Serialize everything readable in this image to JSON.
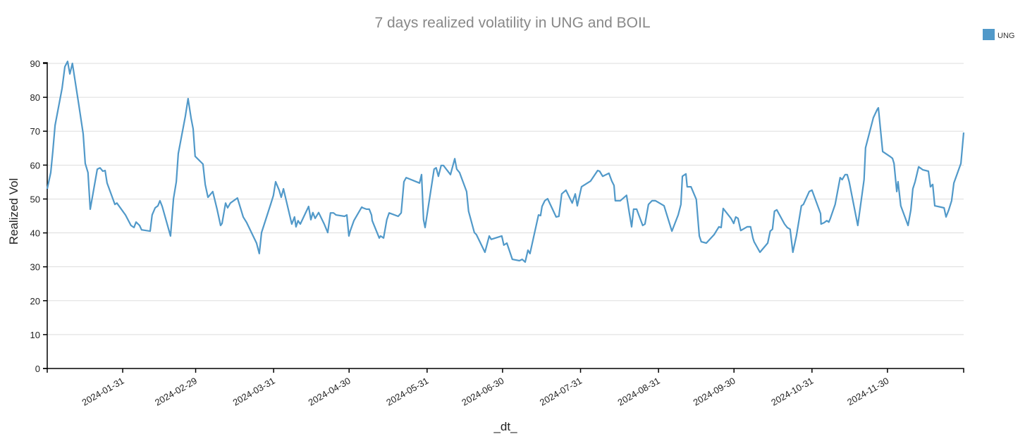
{
  "chart_data": {
    "type": "line",
    "title": "7 days realized volatility in UNG and BOIL",
    "xlabel": "_dt_",
    "ylabel": "Realized Vol",
    "x_origin": "2024-01-01",
    "x_unit": "days since origin",
    "xlim_days": [
      0,
      364.3
    ],
    "ylim": [
      0,
      90
    ],
    "yticks": [
      0,
      10,
      20,
      30,
      40,
      50,
      60,
      70,
      80,
      90
    ],
    "xticks": [
      {
        "day": 30,
        "label": "2024-01-31"
      },
      {
        "day": 59,
        "label": "2024-02-29"
      },
      {
        "day": 90,
        "label": "2024-03-31"
      },
      {
        "day": 120,
        "label": "2024-04-30"
      },
      {
        "day": 151,
        "label": "2024-05-31"
      },
      {
        "day": 181,
        "label": "2024-06-30"
      },
      {
        "day": 212,
        "label": "2024-07-31"
      },
      {
        "day": 243,
        "label": "2024-08-31"
      },
      {
        "day": 273,
        "label": "2024-09-30"
      },
      {
        "day": 304,
        "label": "2024-10-31"
      },
      {
        "day": 334,
        "label": "2024-11-30"
      }
    ],
    "grid": "horizontal",
    "legend_position": "top-right",
    "series": [
      {
        "name": "UNG",
        "color": "#5199c9",
        "points": [
          [
            0,
            53
          ],
          [
            1.4,
            57.8
          ],
          [
            2.2,
            64
          ],
          [
            3.1,
            71.7
          ],
          [
            5.9,
            82.7
          ],
          [
            7,
            89
          ],
          [
            8.1,
            90.6
          ],
          [
            9,
            86.9
          ],
          [
            10,
            90
          ],
          [
            12.6,
            77.5
          ],
          [
            14.3,
            69.2
          ],
          [
            15.1,
            60.5
          ],
          [
            16.2,
            57.8
          ],
          [
            17.1,
            47
          ],
          [
            19.9,
            58.8
          ],
          [
            21,
            59.2
          ],
          [
            22.1,
            58.2
          ],
          [
            23,
            58.4
          ],
          [
            23.8,
            54.7
          ],
          [
            26.9,
            48.4
          ],
          [
            27.7,
            48.8
          ],
          [
            31.1,
            45.3
          ],
          [
            33.3,
            42.2
          ],
          [
            34.5,
            41.6
          ],
          [
            35.3,
            43.2
          ],
          [
            36.7,
            42.2
          ],
          [
            37.5,
            40.9
          ],
          [
            40.9,
            40.5
          ],
          [
            41.7,
            45.3
          ],
          [
            42.9,
            47.4
          ],
          [
            44,
            48
          ],
          [
            44.8,
            49.5
          ],
          [
            45.7,
            47.8
          ],
          [
            49,
            39.1
          ],
          [
            50.2,
            50.1
          ],
          [
            51.3,
            55.1
          ],
          [
            52.1,
            63.4
          ],
          [
            54.9,
            74.4
          ],
          [
            56,
            79.6
          ],
          [
            57.2,
            73.8
          ],
          [
            58,
            70.7
          ],
          [
            58.8,
            62.6
          ],
          [
            61.9,
            60.3
          ],
          [
            62.8,
            54.3
          ],
          [
            63.9,
            50.5
          ],
          [
            65.8,
            52.2
          ],
          [
            67.5,
            47
          ],
          [
            68.9,
            42.2
          ],
          [
            69.5,
            42.8
          ],
          [
            70.9,
            48.8
          ],
          [
            71.7,
            47.4
          ],
          [
            72.8,
            48.8
          ],
          [
            75.6,
            50.3
          ],
          [
            77.9,
            44.7
          ],
          [
            79.3,
            43
          ],
          [
            83.2,
            37
          ],
          [
            84.3,
            33.9
          ],
          [
            85.2,
            40.1
          ],
          [
            88.8,
            48.4
          ],
          [
            89.9,
            51
          ],
          [
            90.8,
            55.1
          ],
          [
            92.2,
            52.6
          ],
          [
            93,
            50.5
          ],
          [
            93.9,
            53
          ],
          [
            97.2,
            42.6
          ],
          [
            98.3,
            44.7
          ],
          [
            98.9,
            41.8
          ],
          [
            99.7,
            43.6
          ],
          [
            100.6,
            42.6
          ],
          [
            103.9,
            47.8
          ],
          [
            104.8,
            43.9
          ],
          [
            105.6,
            46
          ],
          [
            106.5,
            44.3
          ],
          [
            107.9,
            46
          ],
          [
            110.1,
            42.6
          ],
          [
            111.5,
            40.1
          ],
          [
            112.6,
            45.9
          ],
          [
            113.8,
            45.9
          ],
          [
            114.8,
            45.3
          ],
          [
            118.2,
            44.9
          ],
          [
            119.1,
            45.3
          ],
          [
            119.9,
            39.1
          ],
          [
            120.5,
            40.7
          ],
          [
            121.9,
            43.6
          ],
          [
            125,
            47.6
          ],
          [
            125.5,
            47.4
          ],
          [
            126.9,
            47
          ],
          [
            128,
            47
          ],
          [
            128.9,
            45.3
          ],
          [
            129.2,
            43.6
          ],
          [
            132,
            38.5
          ],
          [
            132.5,
            39.1
          ],
          [
            133.7,
            38.5
          ],
          [
            135,
            43.9
          ],
          [
            135.9,
            45.9
          ],
          [
            139.5,
            44.9
          ],
          [
            140.7,
            45.9
          ],
          [
            141.8,
            55.1
          ],
          [
            142.7,
            56.3
          ],
          [
            148,
            54.7
          ],
          [
            148.8,
            57.2
          ],
          [
            149.6,
            43.9
          ],
          [
            150.2,
            41.6
          ],
          [
            153.8,
            58.8
          ],
          [
            154.6,
            59.2
          ],
          [
            155.5,
            56.7
          ],
          [
            156.6,
            59.9
          ],
          [
            157.5,
            59.9
          ],
          [
            160.3,
            57.2
          ],
          [
            162,
            61.9
          ],
          [
            162.8,
            58.8
          ],
          [
            163.9,
            57.8
          ],
          [
            166.7,
            52.2
          ],
          [
            167.5,
            46.4
          ],
          [
            169.8,
            40.1
          ],
          [
            170.6,
            39.5
          ],
          [
            174,
            34.3
          ],
          [
            175.7,
            39.1
          ],
          [
            176.5,
            38.1
          ],
          [
            180.7,
            39.1
          ],
          [
            181.5,
            36.4
          ],
          [
            182.7,
            37
          ],
          [
            184.9,
            32.2
          ],
          [
            187.7,
            31.8
          ],
          [
            188.8,
            32.2
          ],
          [
            190,
            31.4
          ],
          [
            191.1,
            34.9
          ],
          [
            191.9,
            33.9
          ],
          [
            195.3,
            45.3
          ],
          [
            196.1,
            45.1
          ],
          [
            196.7,
            47.8
          ],
          [
            197.8,
            49.5
          ],
          [
            198.9,
            50.1
          ],
          [
            202.3,
            44.7
          ],
          [
            203.4,
            44.9
          ],
          [
            204.5,
            51.5
          ],
          [
            206.2,
            52.6
          ],
          [
            208.7,
            48.8
          ],
          [
            209.9,
            51.5
          ],
          [
            210.7,
            48
          ],
          [
            212.4,
            53.6
          ],
          [
            216,
            55.3
          ],
          [
            218.8,
            58.4
          ],
          [
            219.6,
            58.2
          ],
          [
            220.8,
            56.7
          ],
          [
            223.3,
            57.6
          ],
          [
            224.4,
            55.3
          ],
          [
            225.3,
            54
          ],
          [
            225.8,
            49.5
          ],
          [
            227.8,
            49.5
          ],
          [
            230.3,
            51.1
          ],
          [
            231.4,
            45.9
          ],
          [
            232.3,
            41.8
          ],
          [
            233.1,
            47
          ],
          [
            234.3,
            47
          ],
          [
            236.7,
            42.2
          ],
          [
            237.6,
            42.6
          ],
          [
            239,
            48.4
          ],
          [
            240.4,
            49.5
          ],
          [
            241.8,
            49.5
          ],
          [
            245.2,
            48
          ],
          [
            248.3,
            40.5
          ],
          [
            250.8,
            45.3
          ],
          [
            251.9,
            48.4
          ],
          [
            252.5,
            56.7
          ],
          [
            253.9,
            57.4
          ],
          [
            254.4,
            53.6
          ],
          [
            255.9,
            53.6
          ],
          [
            258,
            49.9
          ],
          [
            259.2,
            39.1
          ],
          [
            260,
            37.4
          ],
          [
            262,
            37
          ],
          [
            265.1,
            39.5
          ],
          [
            267,
            41.8
          ],
          [
            267.9,
            41.6
          ],
          [
            268.7,
            47.2
          ],
          [
            271.8,
            44.3
          ],
          [
            272.9,
            42.8
          ],
          [
            273.7,
            44.7
          ],
          [
            274.6,
            44.3
          ],
          [
            275.7,
            40.7
          ],
          [
            278.2,
            41.8
          ],
          [
            279.6,
            41.8
          ],
          [
            280.5,
            38.5
          ],
          [
            281,
            37.4
          ],
          [
            283.3,
            34.3
          ],
          [
            286.4,
            37
          ],
          [
            287.4,
            40.5
          ],
          [
            288.3,
            41.1
          ],
          [
            289.1,
            46.4
          ],
          [
            290,
            46.8
          ],
          [
            293.1,
            42.6
          ],
          [
            294.2,
            41.6
          ],
          [
            295.3,
            41.1
          ],
          [
            296.4,
            34.3
          ],
          [
            297.8,
            39.1
          ],
          [
            299.8,
            48
          ],
          [
            300.6,
            48.4
          ],
          [
            302.9,
            52.2
          ],
          [
            304,
            52.6
          ],
          [
            307.4,
            45.7
          ],
          [
            307.6,
            42.6
          ],
          [
            308.8,
            43
          ],
          [
            309.9,
            43.6
          ],
          [
            310.7,
            43.2
          ],
          [
            311.3,
            44.3
          ],
          [
            313.2,
            48.4
          ],
          [
            315.2,
            56.3
          ],
          [
            316,
            55.7
          ],
          [
            317.2,
            57.2
          ],
          [
            318,
            57.2
          ],
          [
            318.8,
            55.1
          ],
          [
            322.2,
            42.2
          ],
          [
            324.7,
            55.7
          ],
          [
            325.3,
            65.1
          ],
          [
            328.4,
            74
          ],
          [
            330,
            76.5
          ],
          [
            330.4,
            76.9
          ],
          [
            332.1,
            64
          ],
          [
            334.9,
            62.6
          ],
          [
            336,
            62
          ],
          [
            336.6,
            60.5
          ],
          [
            337.7,
            52.2
          ],
          [
            338.2,
            55.1
          ],
          [
            339.3,
            48
          ],
          [
            342.2,
            42.2
          ],
          [
            343.3,
            46.8
          ],
          [
            344.1,
            53
          ],
          [
            345,
            55.1
          ],
          [
            346.4,
            59.5
          ],
          [
            348.1,
            58.6
          ],
          [
            350.3,
            58.2
          ],
          [
            351.1,
            53.6
          ],
          [
            352,
            54.3
          ],
          [
            352.8,
            48
          ],
          [
            355.3,
            47.6
          ],
          [
            356.5,
            47.4
          ],
          [
            357.3,
            44.7
          ],
          [
            358.4,
            46.8
          ],
          [
            359.5,
            49.5
          ],
          [
            360.4,
            54.7
          ],
          [
            363.2,
            60.5
          ],
          [
            364.3,
            69.6
          ]
        ]
      }
    ]
  }
}
